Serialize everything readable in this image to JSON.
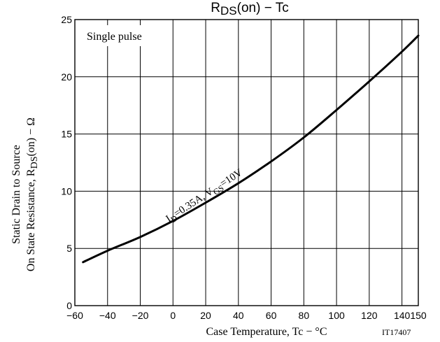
{
  "chart_data": {
    "type": "line",
    "title": {
      "main": "R",
      "sub": "DS",
      "rest": "(on)  −  Tc"
    },
    "xlabel": "Case Temperature, Tc  −  °C",
    "ylabel": {
      "line1": "Static Drain to Source",
      "line2_pre": "On State Resistance, R",
      "line2_sub": "DS",
      "line2_post": "(on)  −  Ω"
    },
    "xlim": [
      -60,
      150
    ],
    "ylim": [
      0,
      25
    ],
    "x_ticks": [
      -60,
      -40,
      -20,
      0,
      20,
      40,
      60,
      80,
      100,
      120,
      140,
      150
    ],
    "y_ticks": [
      0,
      5,
      10,
      15,
      20,
      25
    ],
    "grid": true,
    "annotations": {
      "corner_note": "Single pulse",
      "curve_label": {
        "p1": "I",
        "s1": "D",
        "p2": "=0.35A, V",
        "s2": "GS",
        "p3": "=10V"
      },
      "part_code": "IT17407"
    },
    "series": [
      {
        "x": [
          -55,
          -40,
          -20,
          0,
          20,
          40,
          60,
          80,
          100,
          120,
          140,
          150
        ],
        "y": [
          3.8,
          4.8,
          6.0,
          7.4,
          9.0,
          10.7,
          12.6,
          14.7,
          17.1,
          19.6,
          22.2,
          23.6
        ]
      }
    ]
  }
}
